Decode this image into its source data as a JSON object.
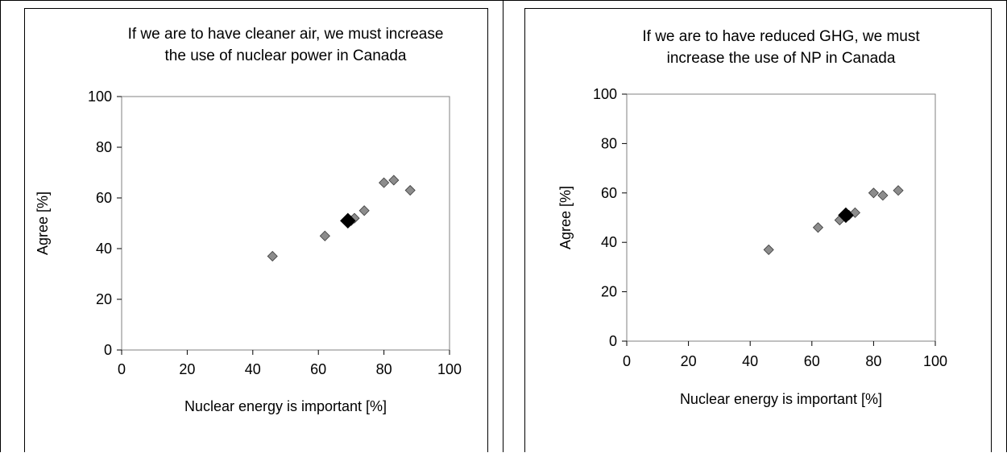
{
  "chart_data": [
    {
      "type": "scatter",
      "title": [
        "If we are to have cleaner air, we must increase",
        "the use of nuclear power in Canada"
      ],
      "xlabel": "Nuclear energy is important [%]",
      "ylabel": "Agree [%]",
      "xlim": [
        0,
        100
      ],
      "ylim": [
        0,
        100
      ],
      "xticks": [
        "0",
        "20",
        "40",
        "60",
        "80",
        "100"
      ],
      "yticks": [
        "0",
        "20",
        "40",
        "60",
        "80",
        "100"
      ],
      "grid": false,
      "legend": "none",
      "colors": {
        "point": "#8c8c8c",
        "highlight": "#000000",
        "axis": "#808080"
      },
      "points": [
        {
          "x": 46,
          "y": 37
        },
        {
          "x": 62,
          "y": 45
        },
        {
          "x": 70,
          "y": 51
        },
        {
          "x": 71,
          "y": 52
        },
        {
          "x": 74,
          "y": 55
        },
        {
          "x": 80,
          "y": 66
        },
        {
          "x": 83,
          "y": 67
        },
        {
          "x": 88,
          "y": 63
        }
      ],
      "highlight": {
        "x": 69,
        "y": 51
      }
    },
    {
      "type": "scatter",
      "title": [
        "If we are to have reduced GHG, we must",
        "increase the use of NP in Canada"
      ],
      "xlabel": "Nuclear energy is important [%]",
      "ylabel": "Agree [%]",
      "xlim": [
        0,
        100
      ],
      "ylim": [
        0,
        100
      ],
      "xticks": [
        "0",
        "20",
        "40",
        "60",
        "80",
        "100"
      ],
      "yticks": [
        "0",
        "20",
        "40",
        "60",
        "80",
        "100"
      ],
      "grid": false,
      "legend": "none",
      "colors": {
        "point": "#8c8c8c",
        "highlight": "#000000",
        "axis": "#808080"
      },
      "points": [
        {
          "x": 46,
          "y": 37
        },
        {
          "x": 62,
          "y": 46
        },
        {
          "x": 69,
          "y": 49
        },
        {
          "x": 72,
          "y": 51
        },
        {
          "x": 74,
          "y": 52
        },
        {
          "x": 80,
          "y": 60
        },
        {
          "x": 83,
          "y": 59
        },
        {
          "x": 88,
          "y": 61
        }
      ],
      "highlight": {
        "x": 71,
        "y": 51
      }
    }
  ]
}
